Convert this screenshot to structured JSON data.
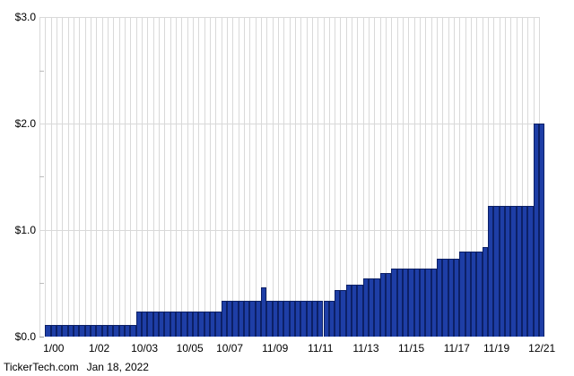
{
  "footer": {
    "source": "TickerTech.com",
    "date": "Jan 18, 2022"
  },
  "chart_data": {
    "type": "bar",
    "title": "",
    "xlabel": "",
    "ylabel": "",
    "ylim": [
      0,
      3.0
    ],
    "grid": "on",
    "legend": "none",
    "y_ticks": [
      {
        "value": 0.0,
        "label": "$0.0"
      },
      {
        "value": 1.0,
        "label": "$1.0"
      },
      {
        "value": 2.0,
        "label": "$2.0"
      },
      {
        "value": 3.0,
        "label": "$3.0"
      }
    ],
    "y_minor_ticks": [
      0.5,
      1.5,
      2.5
    ],
    "x_tick_labels": [
      {
        "label": "1/00",
        "bar_index": 1
      },
      {
        "label": "1/02",
        "bar_index": 9
      },
      {
        "label": "10/03",
        "bar_index": 17
      },
      {
        "label": "10/05",
        "bar_index": 25
      },
      {
        "label": "10/07",
        "bar_index": 32
      },
      {
        "label": "11/09",
        "bar_index": 40
      },
      {
        "label": "11/11",
        "bar_index": 48
      },
      {
        "label": "11/13",
        "bar_index": 56
      },
      {
        "label": "11/15",
        "bar_index": 64
      },
      {
        "label": "11/17",
        "bar_index": 72
      },
      {
        "label": "11/19",
        "bar_index": 79
      },
      {
        "label": "12/21",
        "bar_index": 87
      }
    ],
    "values": [
      0.11,
      0.11,
      0.11,
      0.11,
      0.11,
      0.11,
      0.11,
      0.11,
      0.11,
      0.11,
      0.11,
      0.11,
      0.11,
      0.11,
      0.11,
      0.11,
      0.24,
      0.24,
      0.24,
      0.24,
      0.24,
      0.24,
      0.24,
      0.24,
      0.24,
      0.24,
      0.24,
      0.24,
      0.24,
      0.24,
      0.24,
      0.34,
      0.34,
      0.34,
      0.34,
      0.34,
      0.34,
      0.34,
      0.46,
      0.34,
      0.34,
      0.34,
      0.34,
      0.34,
      0.34,
      0.34,
      0.34,
      0.34,
      0.34,
      0.34,
      0.34,
      0.44,
      0.44,
      0.49,
      0.49,
      0.49,
      0.55,
      0.55,
      0.55,
      0.6,
      0.6,
      0.64,
      0.64,
      0.64,
      0.64,
      0.64,
      0.64,
      0.64,
      0.64,
      0.73,
      0.73,
      0.73,
      0.73,
      0.8,
      0.8,
      0.8,
      0.8,
      0.84,
      1.23,
      1.23,
      1.23,
      1.23,
      1.23,
      1.23,
      1.23,
      1.23,
      2.0,
      2.0
    ],
    "colors": {
      "bar_fill": "#1e3ea6",
      "bar_border": "#0c2066",
      "gridline": "#d9d9d9",
      "minor_tick": "#bbbbbb",
      "text": "#000000",
      "background": "#ffffff"
    }
  }
}
